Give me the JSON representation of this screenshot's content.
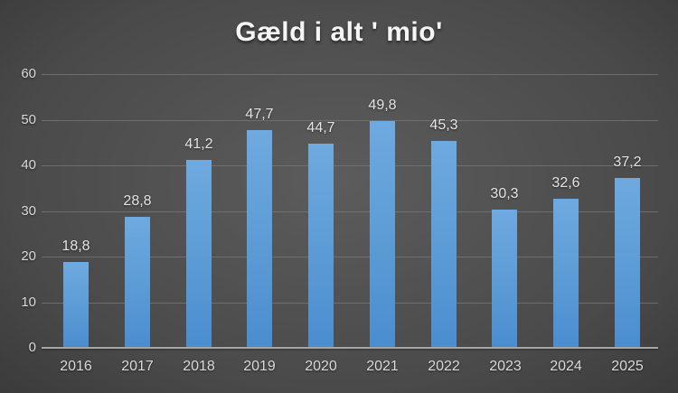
{
  "chart_data": {
    "type": "bar",
    "title": "Gæld i alt ' mio'",
    "categories": [
      "2016",
      "2017",
      "2018",
      "2019",
      "2020",
      "2021",
      "2022",
      "2023",
      "2024",
      "2025"
    ],
    "values": [
      18.8,
      28.8,
      41.2,
      47.7,
      44.7,
      49.8,
      45.3,
      30.3,
      32.6,
      37.2
    ],
    "value_labels": [
      "18,8",
      "28,8",
      "41,2",
      "47,7",
      "44,7",
      "49,8",
      "45,3",
      "30,3",
      "32,6",
      "37,2"
    ],
    "ylim": [
      0,
      60
    ],
    "ytick_interval": 10,
    "ytick_labels": [
      "0",
      "10",
      "20",
      "30",
      "40",
      "50",
      "60"
    ],
    "xlabel": "",
    "ylabel": "",
    "grid": true,
    "legend": "none",
    "colors": {
      "background_center": "#5c5c5c",
      "background_edge": "#242424",
      "gridline": "#767676",
      "axis_line": "#a6a6a6",
      "label_text": "#d9d9d9",
      "title_text": "#f5f5f5",
      "bar_top": "#6fa9e0",
      "bar_mid": "#5b9bd5",
      "bar_bottom": "#4a8dd0"
    }
  }
}
